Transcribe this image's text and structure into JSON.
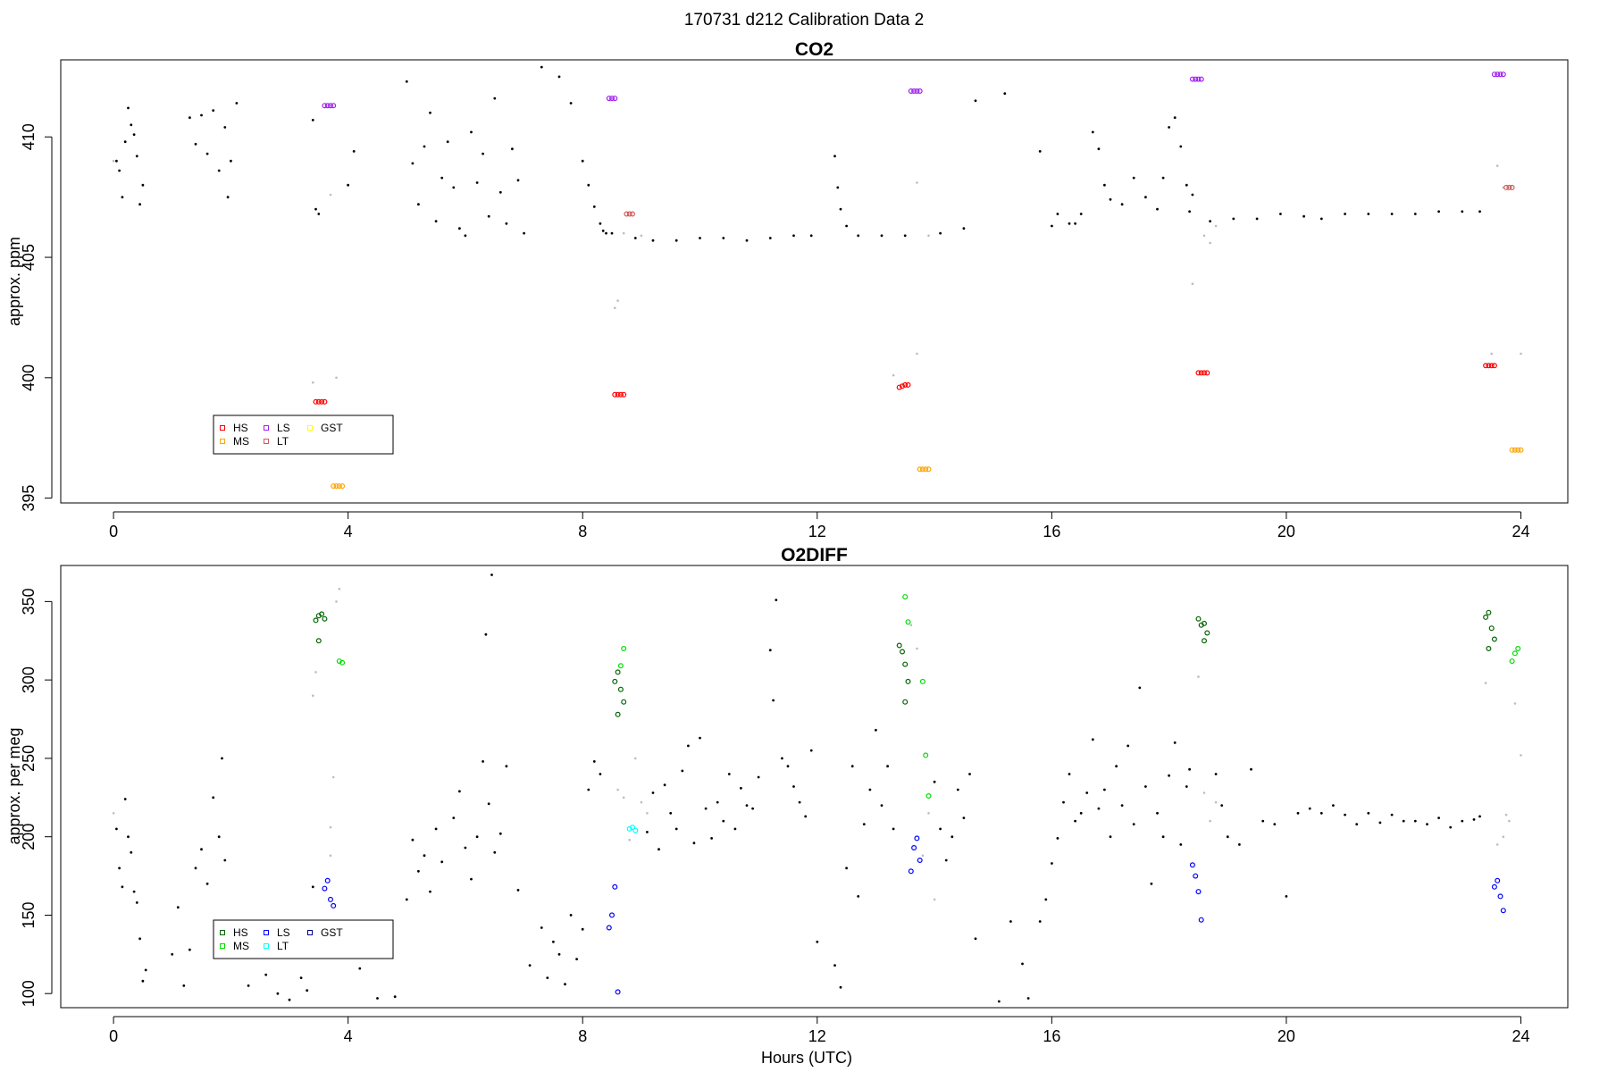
{
  "figure": {
    "suptitle": "170731   d212   Calibration Data 2",
    "xlabel": "Hours (UTC)"
  },
  "chart_data": [
    {
      "type": "scatter",
      "title": "CO2",
      "xlabel": "",
      "ylabel": "approx. ppm",
      "xlim": [
        -0.9,
        24.8
      ],
      "ylim": [
        394.8,
        413.2
      ],
      "xticks": [
        0,
        4,
        8,
        12,
        16,
        20,
        24
      ],
      "yticks": [
        395,
        400,
        405,
        410
      ],
      "legend": {
        "position": "bottom-left",
        "entries": [
          {
            "name": "HS",
            "color": "#ff0000"
          },
          {
            "name": "MS",
            "color": "#ffa500"
          },
          {
            "name": "LS",
            "color": "#a020f0"
          },
          {
            "name": "LT",
            "color": "#cd5c5c"
          },
          {
            "name": "GST",
            "color": "#ffff00"
          }
        ]
      },
      "series": [
        {
          "name": "HS",
          "color": "#ff0000",
          "x": [
            3.45,
            3.5,
            3.55,
            3.6,
            8.55,
            8.6,
            8.65,
            8.7,
            13.4,
            13.45,
            13.5,
            13.55,
            18.5,
            18.55,
            18.6,
            18.65,
            23.4,
            23.45,
            23.5,
            23.55
          ],
          "y": [
            399.0,
            399.0,
            399.0,
            399.0,
            399.3,
            399.3,
            399.3,
            399.3,
            399.6,
            399.65,
            399.7,
            399.7,
            400.2,
            400.2,
            400.2,
            400.2,
            400.5,
            400.5,
            400.5,
            400.5
          ]
        },
        {
          "name": "MS",
          "color": "#ffa500",
          "x": [
            3.75,
            3.8,
            3.85,
            3.9,
            13.75,
            13.8,
            13.85,
            13.9,
            23.85,
            23.9,
            23.95,
            24.0
          ],
          "y": [
            395.5,
            395.5,
            395.5,
            395.5,
            396.2,
            396.2,
            396.2,
            396.2,
            397.0,
            397.0,
            397.0,
            397.0
          ]
        },
        {
          "name": "LS",
          "color": "#a020f0",
          "x": [
            3.6,
            3.65,
            3.7,
            3.75,
            8.45,
            8.5,
            8.55,
            13.6,
            13.65,
            13.7,
            13.75,
            18.4,
            18.45,
            18.5,
            18.55,
            23.55,
            23.6,
            23.65,
            23.7
          ],
          "y": [
            411.3,
            411.3,
            411.3,
            411.3,
            411.6,
            411.6,
            411.6,
            411.9,
            411.9,
            411.9,
            411.9,
            412.4,
            412.4,
            412.4,
            412.4,
            412.6,
            412.6,
            412.6,
            412.6
          ]
        },
        {
          "name": "LT",
          "color": "#cd5c5c",
          "x": [
            8.75,
            8.8,
            8.85,
            23.75,
            23.8,
            23.85
          ],
          "y": [
            406.8,
            406.8,
            406.8,
            407.9,
            407.9,
            407.9
          ]
        }
      ],
      "scatter_rows": [
        [
          0.05,
          409.0,
          0.1,
          408.6,
          0.15,
          407.5,
          0.2,
          409.8,
          0.25,
          411.2,
          0.3,
          410.5,
          0.35,
          410.1,
          0.4,
          409.2,
          0.45,
          407.2,
          0.5,
          408.0
        ],
        [
          1.3,
          410.8,
          1.4,
          409.7,
          1.5,
          410.9,
          1.6,
          409.3,
          1.7,
          411.1,
          1.8,
          408.6,
          1.9,
          410.4,
          1.95,
          407.5,
          2.0,
          409.0,
          2.1,
          411.4
        ],
        [
          3.4,
          410.7,
          3.45,
          407.0,
          3.5,
          406.8,
          5.0,
          412.3,
          5.1,
          408.9,
          5.2,
          407.2,
          5.3,
          409.6,
          5.4,
          411.0,
          5.5,
          406.5,
          5.6,
          408.3
        ],
        [
          5.7,
          409.8,
          5.8,
          407.9,
          5.9,
          406.2,
          6.0,
          405.9,
          6.1,
          410.2,
          6.2,
          408.1,
          6.3,
          409.3,
          6.4,
          406.7,
          6.5,
          411.6,
          6.6,
          407.7
        ],
        [
          6.7,
          406.4,
          6.8,
          409.5,
          6.9,
          408.2,
          7.0,
          406.0,
          7.3,
          412.9,
          7.6,
          412.5,
          7.8,
          411.4,
          8.0,
          409.0,
          8.1,
          408.0,
          8.2,
          407.1
        ],
        [
          8.3,
          406.4,
          8.35,
          406.1,
          8.4,
          406.0,
          12.3,
          409.2,
          12.35,
          407.9,
          12.4,
          407.0,
          12.5,
          406.3,
          14.7,
          411.5,
          15.2,
          411.8,
          15.8,
          409.4
        ],
        [
          16.1,
          406.8,
          16.3,
          406.4,
          16.5,
          406.8,
          16.7,
          410.2,
          16.8,
          409.5,
          16.9,
          408.0,
          17.0,
          407.4,
          17.2,
          407.2,
          17.4,
          408.3,
          17.6,
          407.5
        ],
        [
          17.8,
          407.0,
          17.9,
          408.3,
          18.0,
          410.4,
          18.1,
          410.8,
          18.2,
          409.6,
          18.3,
          408.0,
          18.35,
          406.9,
          18.4,
          407.6,
          4.0,
          408.0,
          4.1,
          409.4
        ],
        [
          9.2,
          405.7,
          9.6,
          405.7,
          10.0,
          405.8,
          10.4,
          405.8,
          10.8,
          405.7,
          11.2,
          405.8,
          11.6,
          405.9,
          11.9,
          405.9,
          12.7,
          405.9,
          13.1,
          405.9
        ],
        [
          13.5,
          405.9,
          14.1,
          406.0,
          14.5,
          406.2,
          16.0,
          406.3,
          16.4,
          406.4,
          18.7,
          406.5,
          19.1,
          406.6,
          19.5,
          406.6,
          19.9,
          406.8,
          20.3,
          406.7
        ],
        [
          20.6,
          406.6,
          21.0,
          406.8,
          21.4,
          406.8,
          21.8,
          406.8,
          22.2,
          406.8,
          22.6,
          406.9,
          23.0,
          406.9,
          23.3,
          406.9,
          8.5,
          406.0,
          8.9,
          405.8
        ]
      ],
      "gray_rows": [
        [
          0.0,
          409.0,
          3.8,
          400.0,
          3.7,
          407.6,
          8.55,
          402.9,
          8.7,
          406.0,
          9.0,
          405.9,
          13.3,
          400.1,
          13.7,
          401.0,
          13.9,
          405.9,
          13.7,
          408.1
        ],
        [
          18.4,
          403.9,
          18.6,
          405.9,
          18.8,
          406.3,
          23.6,
          408.8,
          23.7,
          407.9,
          23.5,
          401.0,
          24.0,
          401.0,
          3.4,
          399.8,
          8.6,
          403.2,
          18.7,
          405.6
        ]
      ]
    },
    {
      "type": "scatter",
      "title": "O2DIFF",
      "xlabel": "Hours (UTC)",
      "ylabel": "approx. per meg",
      "xlim": [
        -0.9,
        24.8
      ],
      "ylim": [
        91,
        373
      ],
      "xticks": [
        0,
        4,
        8,
        12,
        16,
        20,
        24
      ],
      "yticks": [
        100,
        150,
        200,
        250,
        300,
        350
      ],
      "legend": {
        "position": "bottom-left",
        "entries": [
          {
            "name": "HS",
            "color": "#006400"
          },
          {
            "name": "MS",
            "color": "#00dd00"
          },
          {
            "name": "LS",
            "color": "#0000ff"
          },
          {
            "name": "LT",
            "color": "#00ffff"
          },
          {
            "name": "GST",
            "color": "#00008b"
          }
        ]
      },
      "series": [
        {
          "name": "HS",
          "color": "#006400",
          "x": [
            3.45,
            3.5,
            3.55,
            3.6,
            3.5,
            8.55,
            8.6,
            8.65,
            8.7,
            8.6,
            13.4,
            13.45,
            13.5,
            13.55,
            13.5,
            18.5,
            18.55,
            18.6,
            18.65,
            18.6,
            23.4,
            23.45,
            23.5,
            23.55,
            23.45
          ],
          "y": [
            338,
            341,
            342,
            339,
            325,
            299,
            305,
            294,
            286,
            278,
            322,
            318,
            310,
            299,
            286,
            339,
            335,
            336,
            330,
            325,
            340,
            343,
            333,
            326,
            320
          ]
        },
        {
          "name": "MS",
          "color": "#00dd00",
          "x": [
            3.85,
            3.9,
            8.65,
            8.7,
            13.5,
            13.55,
            13.8,
            13.85,
            13.9,
            23.85,
            23.9,
            23.95
          ],
          "y": [
            312,
            311,
            309,
            320,
            353,
            337,
            299,
            252,
            226,
            312,
            317,
            320
          ]
        },
        {
          "name": "LS",
          "color": "#0000ff",
          "x": [
            3.6,
            3.65,
            3.7,
            3.75,
            8.45,
            8.5,
            8.55,
            8.6,
            13.6,
            13.65,
            13.7,
            13.75,
            18.4,
            18.45,
            18.5,
            18.55,
            23.55,
            23.6,
            23.65,
            23.7
          ],
          "y": [
            167,
            172,
            160,
            156,
            142,
            150,
            168,
            101,
            178,
            193,
            199,
            185,
            182,
            175,
            165,
            147,
            168,
            172,
            162,
            153
          ]
        },
        {
          "name": "LT",
          "color": "#00ffff",
          "x": [
            8.8,
            8.85,
            8.9
          ],
          "y": [
            205,
            206,
            204
          ]
        }
      ],
      "scatter_rows": [
        [
          0.05,
          205,
          0.1,
          180,
          0.15,
          168,
          0.2,
          224,
          0.25,
          200,
          0.3,
          190,
          0.35,
          165,
          0.4,
          158,
          0.45,
          135,
          0.5,
          108
        ],
        [
          0.55,
          115,
          1.0,
          125,
          1.1,
          155,
          1.2,
          105,
          1.3,
          128,
          1.4,
          180,
          1.5,
          192,
          1.6,
          170,
          1.7,
          225,
          1.8,
          200
        ],
        [
          1.85,
          250,
          1.9,
          185,
          2.1,
          140,
          2.3,
          105,
          2.6,
          112,
          2.8,
          100,
          3.0,
          96,
          3.2,
          110,
          3.3,
          102,
          3.4,
          168
        ],
        [
          4.2,
          116,
          4.5,
          97,
          4.8,
          98,
          5.0,
          160,
          5.1,
          198,
          5.2,
          178,
          5.3,
          188,
          5.4,
          165,
          5.5,
          205,
          5.6,
          184
        ],
        [
          5.8,
          212,
          5.9,
          229,
          6.0,
          193,
          6.1,
          173,
          6.2,
          200,
          6.3,
          248,
          6.4,
          221,
          6.5,
          190,
          6.6,
          202,
          6.7,
          245
        ],
        [
          6.9,
          166,
          7.1,
          118,
          7.3,
          142,
          7.4,
          110,
          7.5,
          133,
          7.6,
          125,
          7.7,
          106,
          7.8,
          150,
          7.9,
          122,
          8.0,
          141
        ],
        [
          8.1,
          230,
          8.2,
          248,
          8.3,
          240,
          6.45,
          367,
          6.35,
          329,
          11.2,
          319,
          11.3,
          351,
          11.25,
          287,
          12.4,
          104,
          12.3,
          118
        ],
        [
          9.1,
          203,
          9.2,
          228,
          9.3,
          192,
          9.4,
          233,
          9.5,
          215,
          9.6,
          205,
          9.7,
          242,
          9.8,
          258,
          9.9,
          196,
          10.0,
          263
        ],
        [
          10.1,
          218,
          10.2,
          199,
          10.3,
          222,
          10.4,
          210,
          10.5,
          240,
          10.6,
          205,
          10.7,
          231,
          10.8,
          220,
          10.9,
          218,
          11.0,
          238
        ],
        [
          11.4,
          250,
          11.5,
          245,
          11.6,
          232,
          11.7,
          222,
          11.8,
          213,
          11.9,
          255,
          12.0,
          133,
          12.5,
          180,
          12.6,
          245,
          12.7,
          162
        ],
        [
          12.8,
          208,
          12.9,
          230,
          13.0,
          268,
          13.1,
          220,
          13.2,
          245,
          13.3,
          205,
          14.0,
          235,
          14.1,
          205,
          14.2,
          185,
          14.3,
          200
        ],
        [
          14.4,
          230,
          14.5,
          212,
          14.6,
          240,
          14.7,
          135,
          15.1,
          95,
          15.3,
          146,
          15.5,
          119,
          15.6,
          97,
          15.8,
          146,
          15.9,
          160
        ],
        [
          16.0,
          183,
          16.1,
          199,
          16.2,
          222,
          16.3,
          240,
          16.4,
          210,
          16.5,
          215,
          16.6,
          228,
          16.7,
          262,
          16.8,
          218,
          16.9,
          230
        ],
        [
          17.0,
          200,
          17.1,
          245,
          17.2,
          220,
          17.3,
          258,
          17.4,
          208,
          17.5,
          295,
          17.6,
          232,
          17.7,
          170,
          17.8,
          215,
          17.9,
          200
        ],
        [
          18.0,
          239,
          18.1,
          260,
          18.2,
          195,
          18.3,
          232,
          18.35,
          243,
          18.8,
          240,
          18.9,
          220,
          19.0,
          200,
          19.2,
          195,
          19.4,
          243
        ],
        [
          19.6,
          210,
          19.8,
          208,
          20.0,
          162,
          20.2,
          215,
          20.4,
          218,
          20.6,
          215,
          20.8,
          220,
          21.0,
          214,
          21.2,
          208,
          21.4,
          215
        ],
        [
          21.6,
          209,
          21.8,
          214,
          22.0,
          210,
          22.2,
          210,
          22.4,
          208,
          22.6,
          212,
          22.8,
          206,
          23.0,
          210,
          23.2,
          211,
          23.3,
          213
        ]
      ],
      "gray_rows": [
        [
          0.0,
          215,
          3.4,
          290,
          3.45,
          305,
          3.8,
          350,
          3.85,
          358,
          3.7,
          206,
          3.7,
          188,
          3.75,
          238,
          8.6,
          230,
          8.7,
          225
        ],
        [
          8.8,
          198,
          9.0,
          222,
          9.1,
          215,
          13.6,
          335,
          13.7,
          320,
          13.9,
          215,
          14.0,
          160,
          18.6,
          228,
          18.7,
          210,
          18.8,
          222
        ],
        [
          23.4,
          298,
          23.6,
          195,
          23.7,
          200,
          23.8,
          210,
          23.9,
          285,
          24.0,
          252,
          18.5,
          302,
          13.8,
          188,
          8.9,
          250,
          23.75,
          214
        ]
      ]
    }
  ]
}
